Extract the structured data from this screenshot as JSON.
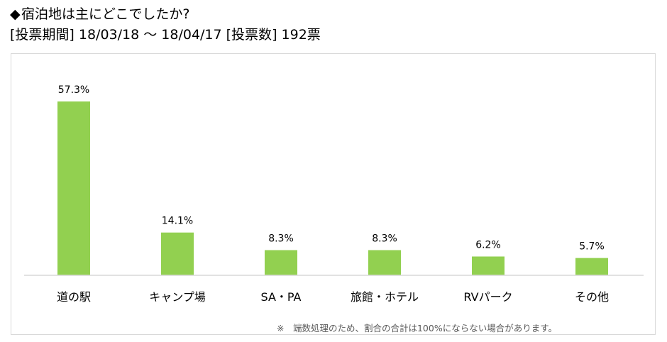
{
  "header": {
    "bullet": "◆",
    "title": "宿泊地は主にどこでしたか?",
    "subtitle": "[投票期間] 18/03/18 ～ 18/04/17 [投票数] 192票"
  },
  "chart_data": {
    "type": "bar",
    "categories": [
      "道の駅",
      "キャンプ場",
      "SA・PA",
      "旅館・ホテル",
      "RVパーク",
      "その他"
    ],
    "values": [
      57.3,
      14.1,
      8.3,
      8.3,
      6.2,
      5.7
    ],
    "value_labels": [
      "57.3%",
      "14.1%",
      "8.3%",
      "8.3%",
      "6.2%",
      "5.7%"
    ],
    "unit": "%",
    "ylim": [
      0,
      57.3
    ],
    "color": "#92d050",
    "grid": false,
    "legend": "none"
  },
  "footnote": "※　端数処理のため、割合の合計は100%にならない場合があります。"
}
